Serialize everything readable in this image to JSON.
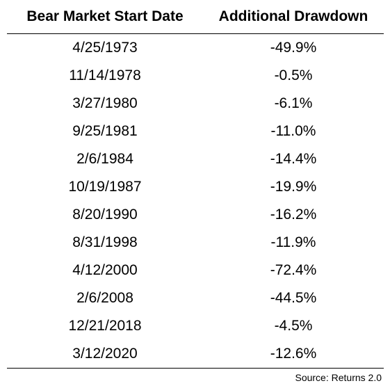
{
  "chart_data": {
    "type": "table",
    "columns": [
      "Bear Market Start Date",
      "Additional Drawdown"
    ],
    "rows": [
      [
        "4/25/1973",
        "-49.9%"
      ],
      [
        "11/14/1978",
        "-0.5%"
      ],
      [
        "3/27/1980",
        "-6.1%"
      ],
      [
        "9/25/1981",
        "-11.0%"
      ],
      [
        "2/6/1984",
        "-14.4%"
      ],
      [
        "10/19/1987",
        "-19.9%"
      ],
      [
        "8/20/1990",
        "-16.2%"
      ],
      [
        "8/31/1998",
        "-11.9%"
      ],
      [
        "4/12/2000",
        "-72.4%"
      ],
      [
        "2/6/2008",
        "-44.5%"
      ],
      [
        "12/21/2018",
        "-4.5%"
      ],
      [
        "3/12/2020",
        "-12.6%"
      ]
    ],
    "source": "Source: Returns 2.0"
  }
}
